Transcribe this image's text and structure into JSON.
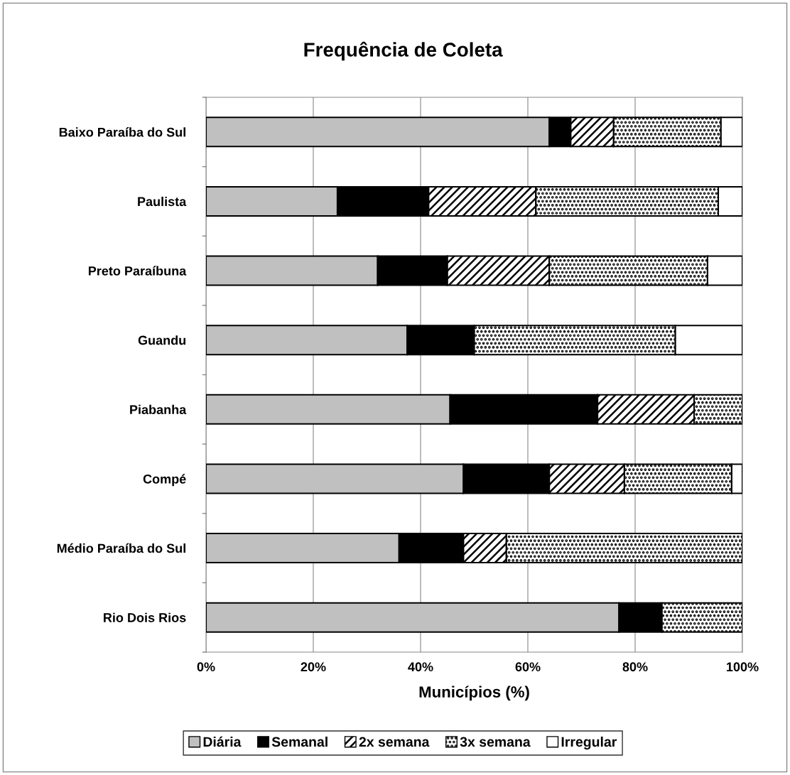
{
  "chart_data": {
    "type": "bar",
    "orientation": "horizontal",
    "stacked": true,
    "title": "Frequência de Coleta",
    "xlabel": "Municípios (%)",
    "categories": [
      "Baixo Paraíba do Sul",
      "Paulista",
      "Preto Paraíbuna",
      "Guandu",
      "Piabanha",
      "Compé",
      "Médio Paraíba do Sul",
      "Rio Dois Rios"
    ],
    "series": [
      {
        "name": "Diária",
        "color": "#c0c0c0",
        "values": [
          64,
          24.5,
          32,
          37.5,
          45.5,
          48,
          36,
          77
        ]
      },
      {
        "name": "Semanal",
        "color": "#000000",
        "values": [
          4,
          17,
          13,
          12.5,
          27.5,
          16,
          12,
          8
        ]
      },
      {
        "name": "2x semana",
        "color": "#ffffff",
        "values": [
          8,
          20,
          19,
          0,
          18,
          14,
          8,
          0
        ]
      },
      {
        "name": "3x semana",
        "color": "#ffffff",
        "values": [
          20,
          34,
          29.5,
          37.5,
          9,
          20,
          44,
          15
        ]
      },
      {
        "name": "Irregular",
        "color": "#ffffff",
        "values": [
          4,
          4.5,
          6.5,
          12.5,
          0,
          2,
          0,
          0
        ]
      }
    ],
    "xlim": [
      0,
      100
    ],
    "xticks": [
      {
        "value": 0,
        "label": "0%"
      },
      {
        "value": 20,
        "label": "20%"
      },
      {
        "value": 40,
        "label": "40%"
      },
      {
        "value": 60,
        "label": "60%"
      },
      {
        "value": 80,
        "label": "80%"
      },
      {
        "value": 100,
        "label": "100%"
      }
    ],
    "grid": "x",
    "legend": "bottom"
  }
}
